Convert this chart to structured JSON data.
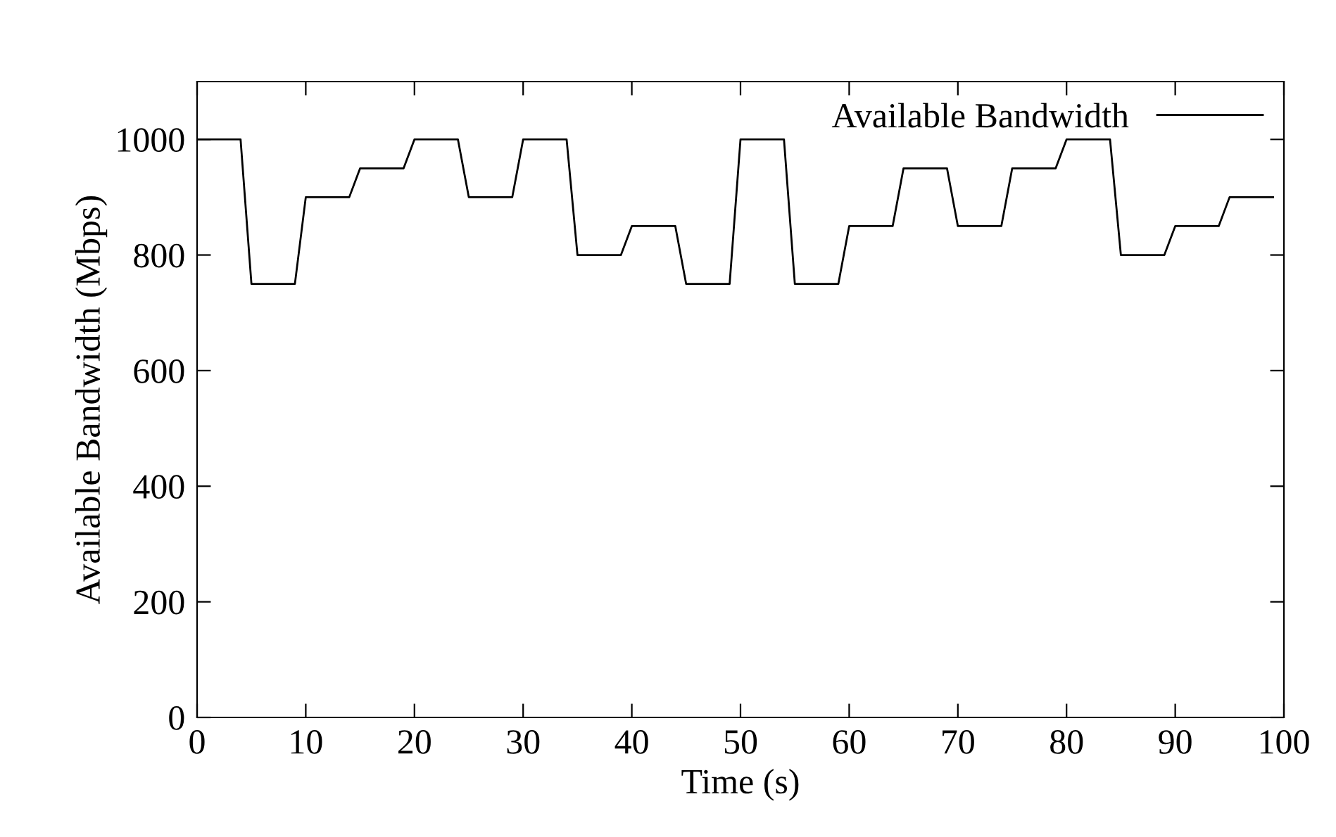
{
  "chart_data": {
    "type": "line",
    "xlabel": "Time (s)",
    "ylabel": "Available Bandwidth (Mbps)",
    "x": [
      0,
      4,
      5,
      9,
      10,
      14,
      15,
      19,
      20,
      24,
      25,
      29,
      30,
      34,
      35,
      39,
      40,
      44,
      45,
      49,
      50,
      54,
      55,
      59,
      60,
      64,
      65,
      69,
      70,
      74,
      75,
      79,
      80,
      84,
      85,
      89,
      90,
      94,
      95,
      99
    ],
    "series": [
      {
        "name": "Available Bandwidth",
        "color": "#000000",
        "values": [
          1000,
          1000,
          750,
          750,
          900,
          900,
          950,
          950,
          1000,
          1000,
          900,
          900,
          1000,
          1000,
          800,
          800,
          850,
          850,
          750,
          750,
          1000,
          1000,
          750,
          750,
          850,
          850,
          950,
          950,
          850,
          850,
          950,
          950,
          1000,
          1000,
          800,
          800,
          850,
          850,
          900,
          900
        ]
      }
    ],
    "xlim": [
      0,
      100
    ],
    "xticks": [
      0,
      10,
      20,
      30,
      40,
      50,
      60,
      70,
      80,
      90,
      100
    ],
    "ylim": [
      0,
      1100
    ],
    "yticks": [
      0,
      200,
      400,
      600,
      800,
      1000
    ],
    "grid": false,
    "legend": "top right",
    "marker": "none",
    "line_style": "solid"
  }
}
